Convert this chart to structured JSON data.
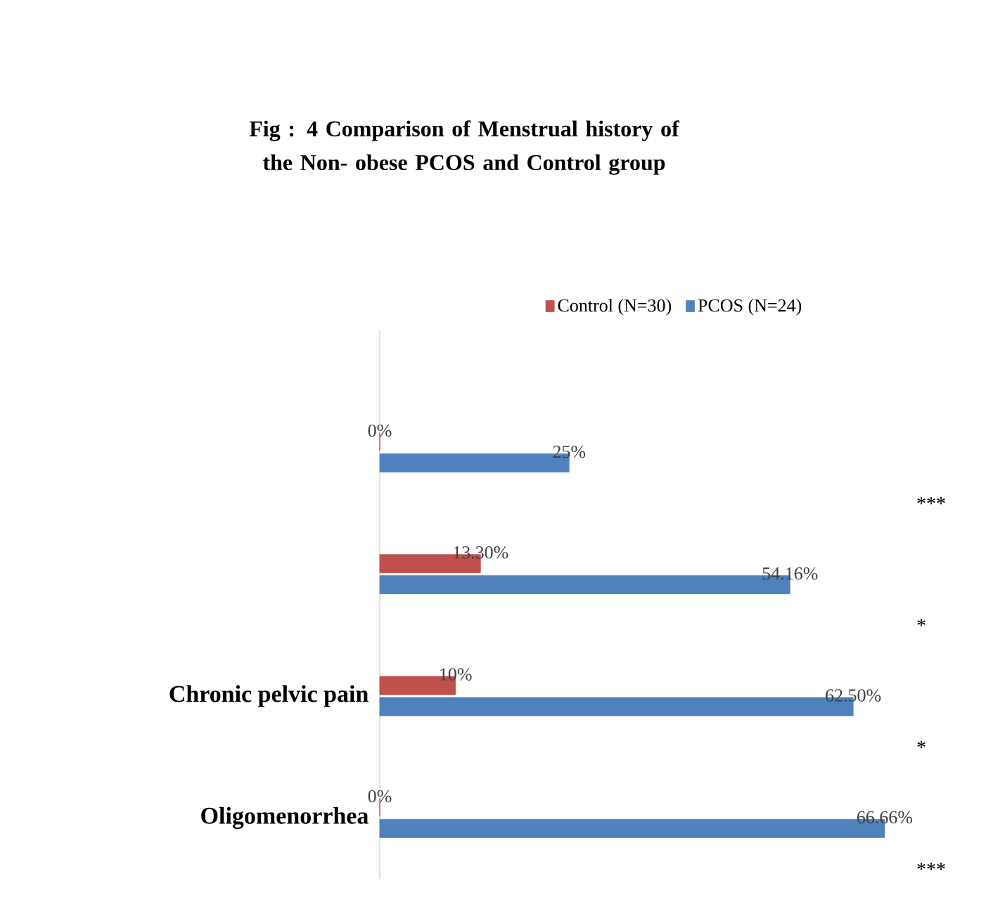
{
  "chart_data": {
    "type": "bar",
    "orientation": "horizontal",
    "title": "Fig : 4 Comparison of Menstrual history of the Non- obese  PCOS and Control group",
    "categories": [
      null,
      null,
      "Chronic pelvic pain",
      "Oligomenorrhea"
    ],
    "series": [
      {
        "name": "Control (N=30)",
        "color": "#c0504d",
        "values": [
          0,
          13.3,
          10,
          0
        ],
        "value_labels": [
          "0%",
          "13.30%",
          "10%",
          "0%"
        ]
      },
      {
        "name": "PCOS (N=24)",
        "color": "#4f81bd",
        "values": [
          25,
          54.16,
          62.5,
          66.66
        ],
        "value_labels": [
          "25%",
          "54.16%",
          "62.50%",
          "66.66%"
        ]
      }
    ],
    "annotations": [
      "***",
      "*",
      "*",
      "***"
    ],
    "legend": "top"
  }
}
